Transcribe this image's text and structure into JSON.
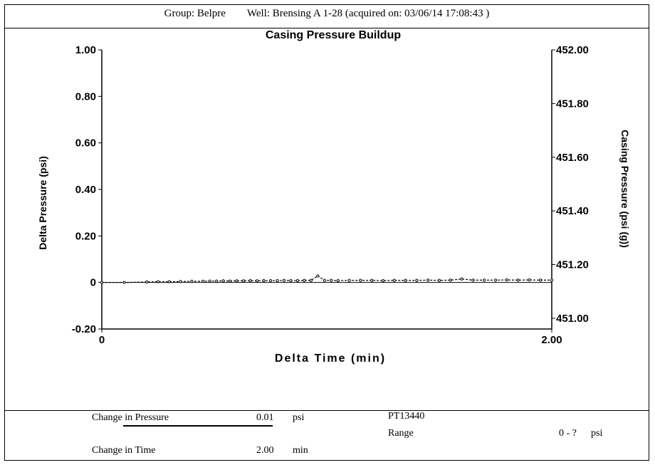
{
  "header": {
    "group": "Group: Belpre",
    "well": "Well: Brensing A 1-28 (acquired on: 03/06/14 17:08:43 )"
  },
  "chart_data": {
    "type": "line",
    "title": "Casing Pressure Buildup",
    "xlabel": "Delta Time (min)",
    "ylabel": "Delta Pressure (psi)",
    "y2label": "Casing Pressure (psi (g))",
    "xlim": [
      0,
      2.0
    ],
    "ylim": [
      -0.2,
      1.0
    ],
    "y2lim": [
      450.96,
      452.0
    ],
    "x_ticks": [
      "0",
      "2.00"
    ],
    "y_ticks": [
      "1.00",
      "0.80",
      "0.60",
      "0.40",
      "0.20",
      "0",
      "-0.20"
    ],
    "y2_ticks": [
      "452.00",
      "451.80",
      "451.60",
      "451.40",
      "451.20",
      "451.00"
    ],
    "grid": false,
    "series": [
      {
        "x": [
          0.0,
          0.1,
          0.2,
          0.25,
          0.3,
          0.35,
          0.4,
          0.45,
          0.48,
          0.51,
          0.54,
          0.57,
          0.6,
          0.63,
          0.66,
          0.69,
          0.72,
          0.75,
          0.78,
          0.81,
          0.84,
          0.87,
          0.9,
          0.93,
          0.96,
          0.99,
          1.02,
          1.05,
          1.1,
          1.15,
          1.2,
          1.25,
          1.3,
          1.35,
          1.4,
          1.45,
          1.5,
          1.55,
          1.6,
          1.65,
          1.7,
          1.75,
          1.8,
          1.85,
          1.9,
          1.95,
          2.0
        ],
        "values": [
          0.0,
          0.0,
          0.002,
          0.003,
          0.003,
          0.004,
          0.005,
          0.005,
          0.006,
          0.006,
          0.007,
          0.006,
          0.007,
          0.007,
          0.008,
          0.007,
          0.008,
          0.008,
          0.008,
          0.009,
          0.008,
          0.008,
          0.009,
          0.009,
          0.028,
          0.009,
          0.009,
          0.008,
          0.009,
          0.009,
          0.009,
          0.008,
          0.009,
          0.009,
          0.009,
          0.01,
          0.009,
          0.01,
          0.015,
          0.01,
          0.01,
          0.01,
          0.011,
          0.01,
          0.011,
          0.01,
          0.01
        ]
      }
    ]
  },
  "footer": {
    "change_pressure_label": "Change in Pressure",
    "change_pressure_value": "0.01",
    "change_pressure_unit": "psi",
    "change_time_label": "Change in Time",
    "change_time_value": "2.00",
    "change_time_unit": "min",
    "gauge_id": "PT13440",
    "range_label": "Range",
    "range_value": "0 - ?",
    "range_unit": "psi"
  }
}
